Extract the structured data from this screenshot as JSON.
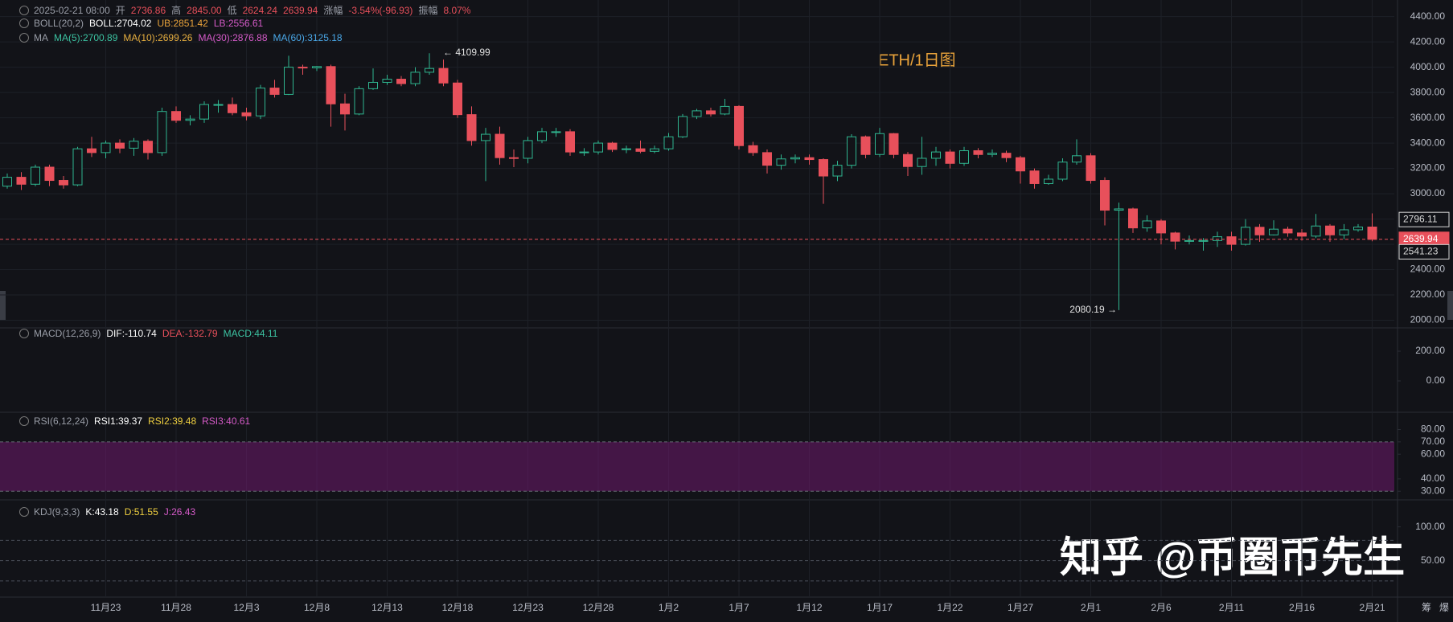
{
  "chart_data": [
    {
      "type": "candlestick",
      "title": "ETH/1日图",
      "legend": [
        [
          {
            "text": "2025-02-21 08:00",
            "color": "#9a9ea8"
          },
          {
            "text": "开",
            "color": "#9a9ea8"
          },
          {
            "text": "2736.86",
            "color": "#e8505b"
          },
          {
            "text": "高",
            "color": "#9a9ea8"
          },
          {
            "text": "2845.00",
            "color": "#e8505b"
          },
          {
            "text": "低",
            "color": "#9a9ea8"
          },
          {
            "text": "2624.24",
            "color": "#e8505b"
          },
          {
            "text": "2639.94",
            "color": "#e8505b"
          },
          {
            "text": "涨幅",
            "color": "#9a9ea8"
          },
          {
            "text": "-3.54%(-96.93)",
            "color": "#e8505b"
          },
          {
            "text": "振幅",
            "color": "#9a9ea8"
          },
          {
            "text": "8.07%",
            "color": "#e8505b"
          }
        ],
        [
          {
            "text": "BOLL(20,2)",
            "color": "#9a9ea8"
          },
          {
            "text": "BOLL:2704.02",
            "color": "#ffffff"
          },
          {
            "text": "UB:2851.42",
            "color": "#e8a23a"
          },
          {
            "text": "LB:2556.61",
            "color": "#d65bc9"
          }
        ],
        [
          {
            "text": "MA",
            "color": "#9a9ea8"
          },
          {
            "text": "MA(5):2700.89",
            "color": "#3cc3a2"
          },
          {
            "text": "MA(10):2699.26",
            "color": "#e8b040"
          },
          {
            "text": "MA(30):2876.88",
            "color": "#d65bc9"
          },
          {
            "text": "MA(60):3125.18",
            "color": "#4aa8e8"
          }
        ]
      ],
      "categories": [
        null,
        null,
        null,
        null,
        null,
        null,
        null,
        "11月23",
        null,
        null,
        null,
        null,
        "11月28",
        null,
        null,
        null,
        null,
        "12月3",
        null,
        null,
        null,
        null,
        "12月8",
        null,
        null,
        null,
        null,
        "12月13",
        null,
        null,
        null,
        null,
        "12月18",
        null,
        null,
        null,
        null,
        "12月23",
        null,
        null,
        null,
        null,
        "12月28",
        null,
        null,
        null,
        null,
        "1月2",
        null,
        null,
        null,
        null,
        "1月7",
        null,
        null,
        null,
        null,
        "1月12",
        null,
        null,
        null,
        null,
        "1月17",
        null,
        null,
        null,
        null,
        "1月22",
        null,
        null,
        null,
        null,
        "1月27",
        null,
        null,
        null,
        null,
        "2月1",
        null,
        null,
        null,
        null,
        "2月6",
        null,
        null,
        null,
        null,
        "2月11",
        null,
        null,
        null,
        null,
        "2月16",
        null,
        null,
        null,
        null,
        "2月21"
      ],
      "open": [
        3060,
        3130,
        3075,
        3210,
        3105,
        3070,
        3355,
        3325,
        3400,
        3360,
        3415,
        3325,
        3650,
        3580,
        3590,
        3705,
        3705,
        3640,
        3615,
        3835,
        3785,
        4000,
        3995,
        4005,
        3710,
        3630,
        3830,
        3880,
        3905,
        3870,
        3960,
        3990,
        3875,
        3625,
        3420,
        3470,
        3285,
        3280,
        3420,
        3490,
        3490,
        3330,
        3330,
        3400,
        3350,
        3355,
        3335,
        3355,
        3450,
        3610,
        3655,
        3630,
        3690,
        3380,
        3325,
        3225,
        3275,
        3285,
        3270,
        3140,
        3225,
        3450,
        3310,
        3475,
        3310,
        3215,
        3280,
        3330,
        3240,
        3340,
        3310,
        3320,
        3285,
        3180,
        3080,
        3115,
        3250,
        3300,
        3105,
        2870,
        2880,
        2730,
        2785,
        2690,
        2625,
        2630,
        2630,
        2660,
        2600,
        2735,
        2675,
        2720,
        2690,
        2665,
        2745,
        2675,
        2715,
        2736.86
      ],
      "high": [
        3160,
        3170,
        3230,
        3230,
        3140,
        3370,
        3450,
        3420,
        3430,
        3440,
        3430,
        3680,
        3690,
        3620,
        3730,
        3740,
        3760,
        3680,
        3860,
        3900,
        4090,
        4020,
        4010,
        4020,
        3790,
        3850,
        3990,
        3940,
        3930,
        4000,
        4109.99,
        4060,
        3900,
        3690,
        3520,
        3530,
        3350,
        3450,
        3520,
        3520,
        3510,
        3360,
        3420,
        3410,
        3380,
        3420,
        3380,
        3480,
        3630,
        3670,
        3680,
        3750,
        3700,
        3410,
        3350,
        3310,
        3310,
        3310,
        3280,
        3260,
        3470,
        3460,
        3520,
        3480,
        3330,
        3450,
        3370,
        3350,
        3370,
        3360,
        3350,
        3340,
        3300,
        3200,
        3150,
        3280,
        3430,
        3320,
        3130,
        2930,
        2890,
        2830,
        2800,
        2700,
        2670,
        2650,
        2700,
        2700,
        2800,
        2760,
        2790,
        2740,
        2720,
        2840,
        2760,
        2760,
        2760,
        2845
      ],
      "low": [
        3040,
        3030,
        3060,
        3060,
        3040,
        3060,
        3290,
        3280,
        3320,
        3300,
        3270,
        3300,
        3560,
        3540,
        3560,
        3640,
        3620,
        3580,
        3590,
        3760,
        3780,
        3940,
        3970,
        3530,
        3500,
        3620,
        3820,
        3860,
        3850,
        3850,
        3940,
        3850,
        3600,
        3380,
        3100,
        3230,
        3210,
        3240,
        3400,
        3450,
        3300,
        3300,
        3310,
        3330,
        3320,
        3320,
        3320,
        3340,
        3440,
        3590,
        3610,
        3620,
        3350,
        3300,
        3160,
        3190,
        3240,
        3230,
        2920,
        3100,
        3200,
        3280,
        3290,
        3280,
        3140,
        3150,
        3220,
        3200,
        3220,
        3280,
        3290,
        3250,
        3080,
        3040,
        3070,
        3100,
        3230,
        3080,
        2750,
        2080.19,
        2690,
        2700,
        2600,
        2560,
        2600,
        2550,
        2580,
        2550,
        2590,
        2620,
        2670,
        2660,
        2630,
        2650,
        2620,
        2640,
        2700,
        2624.24
      ],
      "close": [
        3130,
        3075,
        3210,
        3105,
        3070,
        3355,
        3325,
        3400,
        3360,
        3415,
        3325,
        3650,
        3580,
        3590,
        3705,
        3705,
        3640,
        3615,
        3835,
        3785,
        4000,
        3995,
        4005,
        3710,
        3630,
        3830,
        3880,
        3905,
        3870,
        3960,
        3990,
        3875,
        3625,
        3420,
        3470,
        3285,
        3280,
        3420,
        3490,
        3490,
        3330,
        3330,
        3400,
        3350,
        3355,
        3335,
        3355,
        3450,
        3610,
        3655,
        3630,
        3690,
        3380,
        3325,
        3225,
        3275,
        3285,
        3270,
        3140,
        3225,
        3450,
        3310,
        3475,
        3310,
        3215,
        3280,
        3330,
        3240,
        3340,
        3310,
        3320,
        3285,
        3180,
        3080,
        3115,
        3250,
        3300,
        3105,
        2870,
        2880,
        2730,
        2785,
        2690,
        2625,
        2630,
        2630,
        2660,
        2600,
        2735,
        2675,
        2720,
        2690,
        2665,
        2745,
        2675,
        2715,
        2736.86,
        2639.94
      ],
      "up_color": "#2fb58f",
      "down_color": "#e8505b",
      "grid": true,
      "ylim": [
        1940,
        4480
      ],
      "yticks": [
        {
          "value": 2000,
          "label": "2000.00"
        },
        {
          "value": 2200,
          "label": "2200.00"
        },
        {
          "value": 2400,
          "label": "2400.00"
        },
        {
          "value": 2600,
          "label": "2600.00"
        },
        {
          "value": 2800,
          "label": "2800.00"
        },
        {
          "value": 3000,
          "label": "3000.00"
        },
        {
          "value": 3200,
          "label": "3200.00"
        },
        {
          "value": 3400,
          "label": "3400.00"
        },
        {
          "value": 3600,
          "label": "3600.00"
        },
        {
          "value": 3800,
          "label": "3800.00"
        },
        {
          "value": 4000,
          "label": "4000.00"
        },
        {
          "value": 4200,
          "label": "4200.00"
        },
        {
          "value": 4400,
          "label": "4400.00"
        }
      ],
      "annotations": [
        "← 4109.99",
        "2080.19 →"
      ],
      "price_labels": [
        {
          "value": 2796.11,
          "color": "#d8d8d8"
        },
        {
          "value": 2639.94,
          "color": "#e8505b"
        },
        {
          "value": 2541.23,
          "color": "#d8d8d8"
        }
      ],
      "watermark": "知乎 @币圈币先生",
      "corner_labels": [
        "筹",
        "爆"
      ]
    },
    {
      "type": "line",
      "legend": [
        [
          {
            "text": "MACD(12,26,9)",
            "color": "#9a9ea8"
          },
          {
            "text": "DIF:-110.74",
            "color": "#ffffff"
          },
          {
            "text": "DEA:-132.79",
            "color": "#e8505b"
          },
          {
            "text": "MACD:44.11",
            "color": "#3cc3a2"
          }
        ]
      ],
      "ylim": [
        -211,
        357
      ],
      "yticks": [
        {
          "value": 0,
          "label": "0.00"
        },
        {
          "value": 200,
          "label": "200.00"
        }
      ]
    },
    {
      "type": "line",
      "legend": [
        [
          {
            "text": "RSI(6,12,24)",
            "color": "#9a9ea8"
          },
          {
            "text": "RSI1:39.37",
            "color": "#ffffff"
          },
          {
            "text": "RSI2:39.48",
            "color": "#f0d040"
          },
          {
            "text": "RSI3:40.61",
            "color": "#d65bc9"
          }
        ]
      ],
      "ylim": [
        23,
        94
      ],
      "band": [
        30,
        70
      ],
      "yticks": [
        {
          "value": 30,
          "label": "30.00"
        },
        {
          "value": 40,
          "label": "40.00"
        },
        {
          "value": 60,
          "label": "60.00"
        },
        {
          "value": 70,
          "label": "70.00"
        },
        {
          "value": 80,
          "label": "80.00"
        }
      ]
    },
    {
      "type": "line",
      "legend": [
        [
          {
            "text": "KDJ(9,3,3)",
            "color": "#9a9ea8"
          },
          {
            "text": "K:43.18",
            "color": "#ffffff"
          },
          {
            "text": "D:51.55",
            "color": "#f0d040"
          },
          {
            "text": "J:26.43",
            "color": "#d65bc9"
          }
        ]
      ],
      "ylim": [
        -4,
        140
      ],
      "ref_lines": [
        20,
        50,
        80
      ],
      "yticks": [
        {
          "value": 50,
          "label": "50.00"
        },
        {
          "value": 100,
          "label": "100.00"
        }
      ]
    }
  ]
}
